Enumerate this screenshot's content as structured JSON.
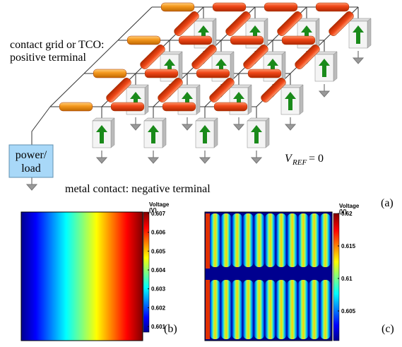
{
  "diagram": {
    "grid_label": "contact grid or TCO:",
    "grid_label_2": "positive terminal",
    "contact_label": "metal contact: negative terminal",
    "power_label": "power/",
    "power_label_2": "load",
    "vref_symbol": "V",
    "vref_subscript": "REF",
    "vref_value": " = 0",
    "panel_label": "(a)"
  },
  "panels": [
    {
      "label": "(b)",
      "colorbar": {
        "title": "Voltage",
        "unit": "(V)",
        "ticks": [
          0.601,
          0.602,
          0.603,
          0.604,
          0.605,
          0.606,
          0.607
        ]
      }
    },
    {
      "label": "(c)",
      "colorbar": {
        "title": "Voltage",
        "unit": "(V)",
        "ticks": [
          0.605,
          0.61,
          0.615,
          0.62
        ]
      }
    }
  ]
}
